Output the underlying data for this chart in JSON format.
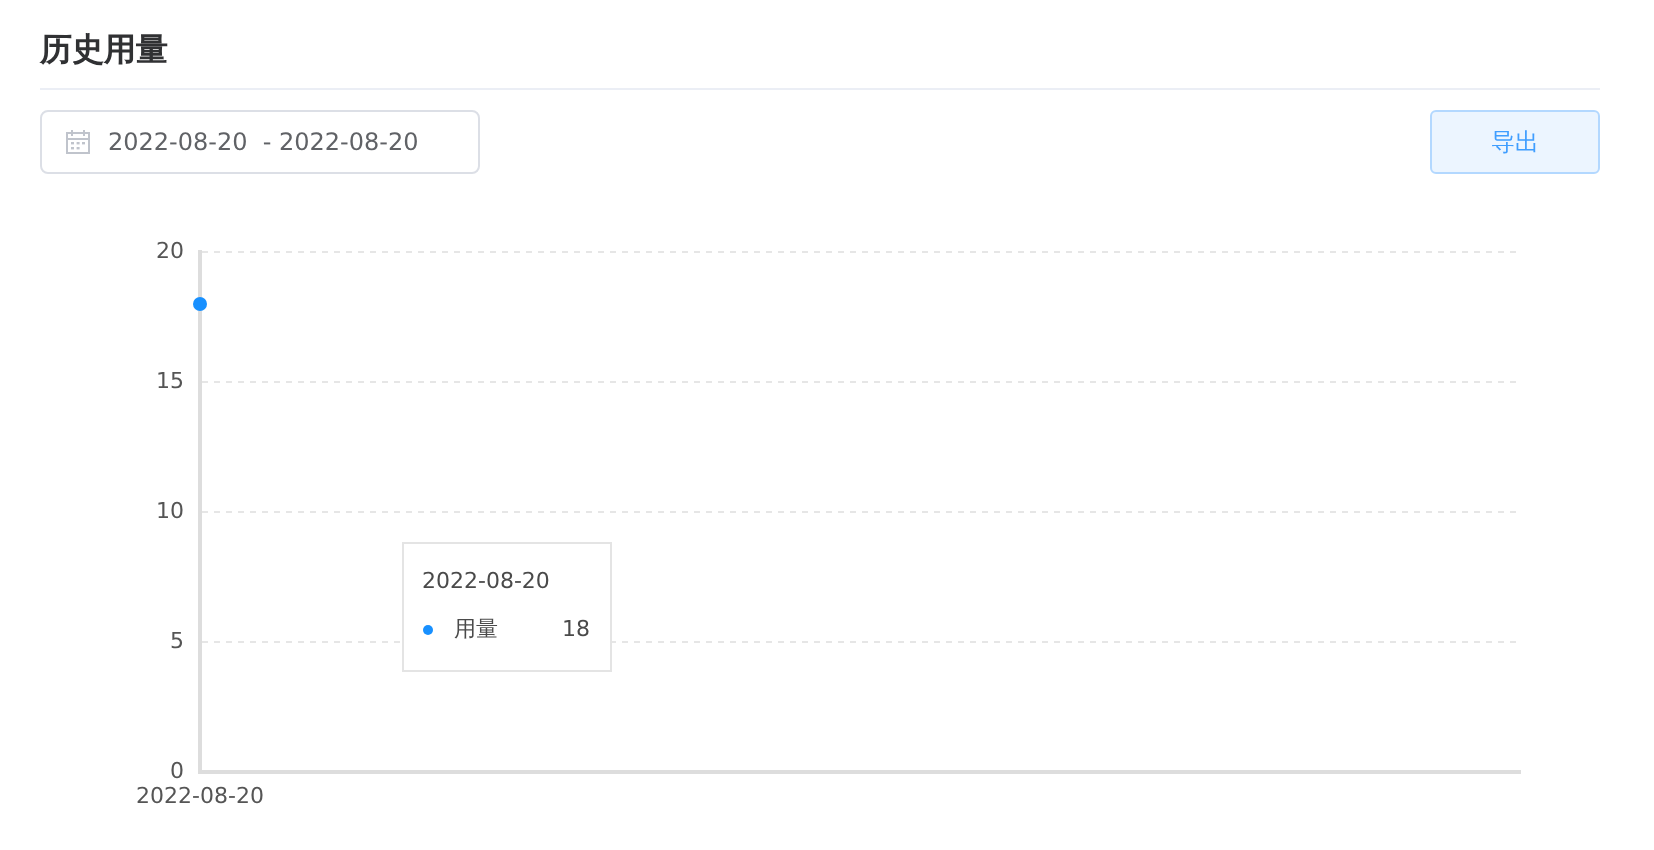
{
  "chart_data": {
    "type": "line",
    "title": "历史用量",
    "categories": [
      "2022-08-20"
    ],
    "series": [
      {
        "name": "用量",
        "color": "#1890ff",
        "values": [
          18
        ]
      }
    ],
    "ylim": [
      0,
      20
    ],
    "yticks": [
      0,
      5,
      10,
      15,
      20
    ],
    "grid": "y",
    "marker": "circle",
    "annotations": [
      "2022-08-20  - 2022-08-20",
      "导出",
      "18"
    ]
  }
}
